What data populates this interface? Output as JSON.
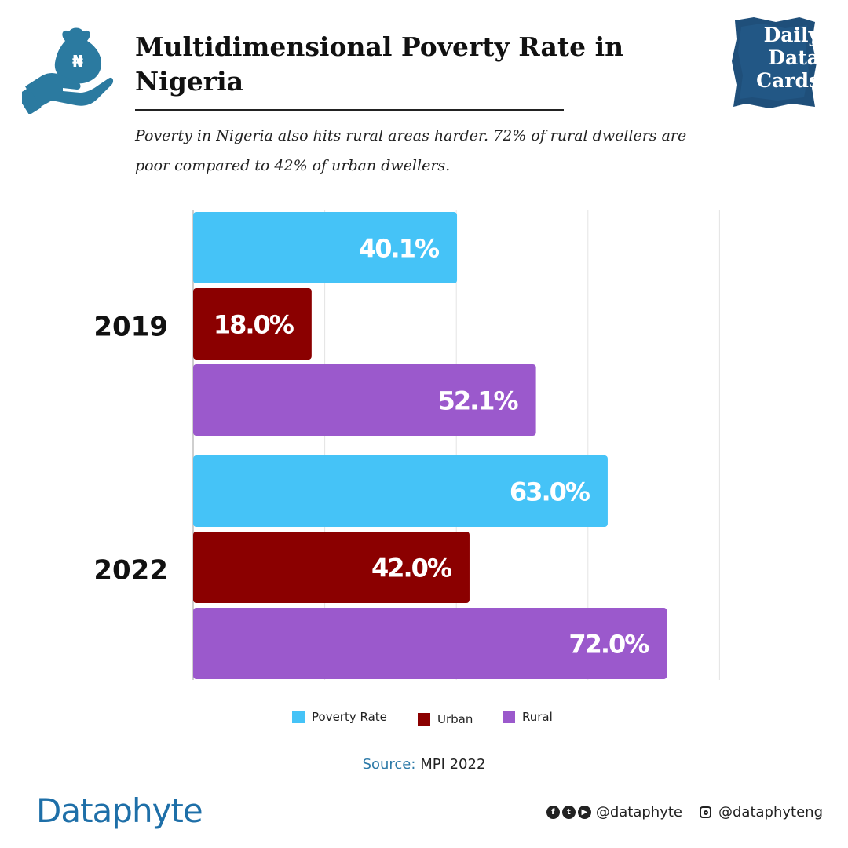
{
  "header": {
    "title": "Multidimensional Poverty Rate in Nigeria",
    "subtitle": "Poverty in Nigeria also hits rural areas harder. 72% of rural dwellers are poor compared to 42% of urban dwellers.",
    "badge": {
      "line1": "Daily",
      "line2": "Data",
      "line3": "Cards"
    },
    "icon": "hand-money-bag-icon",
    "icon_symbol": "₦"
  },
  "chart_data": {
    "type": "bar",
    "orientation": "horizontal",
    "categories": [
      "2019",
      "2022"
    ],
    "series": [
      {
        "name": "Poverty Rate",
        "color": "#45c3f7",
        "values": [
          40.1,
          63.0
        ],
        "labels": [
          "40.1%",
          "63.0%"
        ]
      },
      {
        "name": "Urban",
        "color": "#8b0000",
        "values": [
          18.0,
          42.0
        ],
        "labels": [
          "18.0%",
          "42.0%"
        ]
      },
      {
        "name": "Rural",
        "color": "#9b59cc",
        "values": [
          52.1,
          72.0
        ],
        "labels": [
          "52.1%",
          "72.0%"
        ]
      }
    ],
    "xlim": [
      0,
      80
    ],
    "grid": true,
    "legend": "bottom",
    "data_labels": "inside-end"
  },
  "source": {
    "label": "Source:",
    "value": "MPI 2022"
  },
  "footer": {
    "brand": "Dataphyte",
    "handle1": "@dataphyte",
    "handle2": "@dataphyteng",
    "icons": [
      "facebook-icon",
      "twitter-icon",
      "youtube-icon",
      "instagram-icon"
    ]
  }
}
